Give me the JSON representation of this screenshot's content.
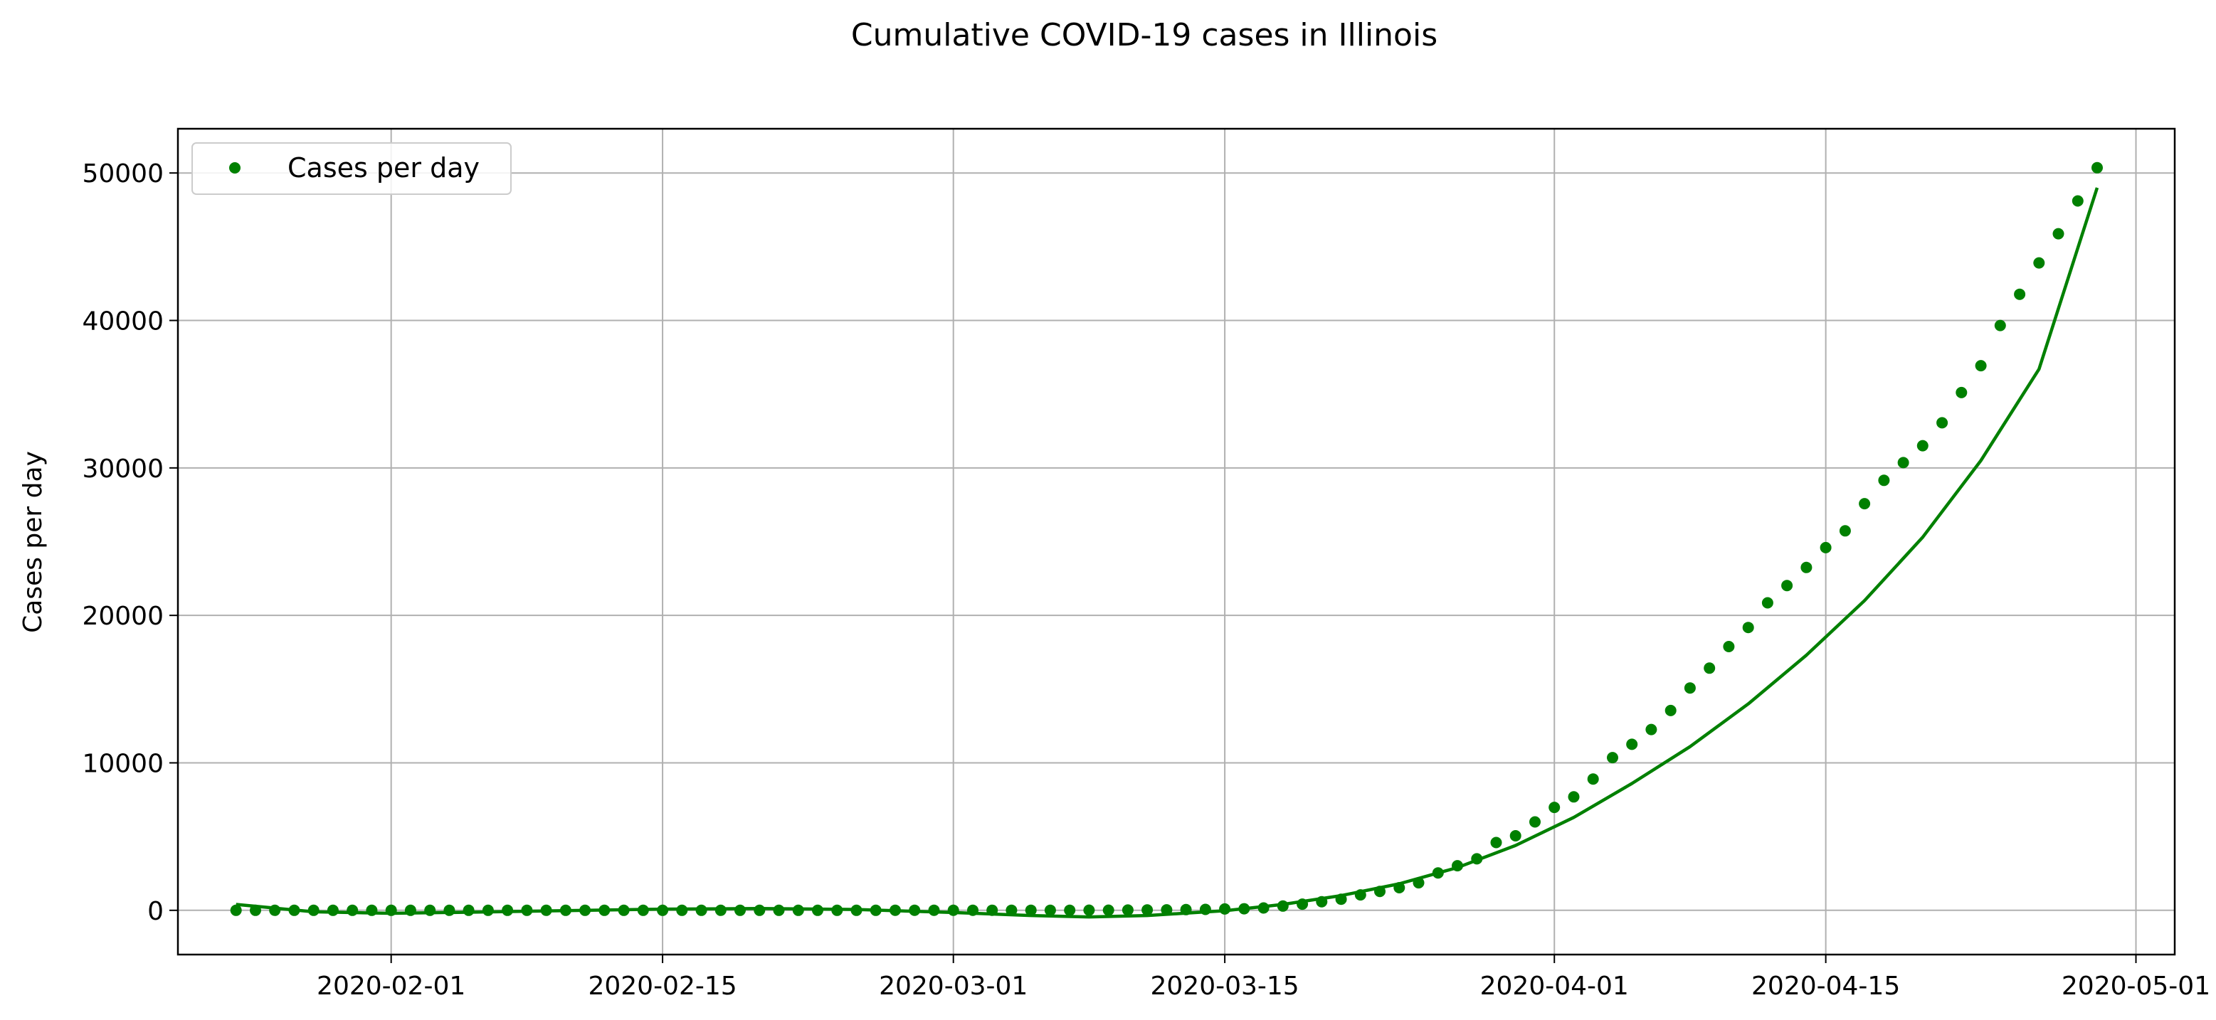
{
  "chart_data": {
    "type": "scatter",
    "title": "Cumulative COVID-19 cases in Illinois",
    "xlabel": "",
    "ylabel": "Cases per day",
    "x_start": "2020-01-24",
    "xlim": [
      "2020-01-21",
      "2020-05-03"
    ],
    "ylim": [
      -3000,
      53000
    ],
    "x_ticks": [
      "2020-02-01",
      "2020-02-15",
      "2020-03-01",
      "2020-03-15",
      "2020-04-01",
      "2020-04-15",
      "2020-05-01"
    ],
    "y_ticks": [
      0,
      10000,
      20000,
      30000,
      40000,
      50000
    ],
    "grid": true,
    "legend_position": "top-left",
    "series": [
      {
        "name": "Cases per day",
        "type": "scatter",
        "color": "#008000",
        "x": [
          "2020-01-24",
          "2020-01-25",
          "2020-01-26",
          "2020-01-27",
          "2020-01-28",
          "2020-01-29",
          "2020-01-30",
          "2020-01-31",
          "2020-02-01",
          "2020-02-02",
          "2020-02-03",
          "2020-02-04",
          "2020-02-05",
          "2020-02-06",
          "2020-02-07",
          "2020-02-08",
          "2020-02-09",
          "2020-02-10",
          "2020-02-11",
          "2020-02-12",
          "2020-02-13",
          "2020-02-14",
          "2020-02-15",
          "2020-02-16",
          "2020-02-17",
          "2020-02-18",
          "2020-02-19",
          "2020-02-20",
          "2020-02-21",
          "2020-02-22",
          "2020-02-23",
          "2020-02-24",
          "2020-02-25",
          "2020-02-26",
          "2020-02-27",
          "2020-02-28",
          "2020-02-29",
          "2020-03-01",
          "2020-03-02",
          "2020-03-03",
          "2020-03-04",
          "2020-03-05",
          "2020-03-06",
          "2020-03-07",
          "2020-03-08",
          "2020-03-09",
          "2020-03-10",
          "2020-03-11",
          "2020-03-12",
          "2020-03-13",
          "2020-03-14",
          "2020-03-15",
          "2020-03-16",
          "2020-03-17",
          "2020-03-18",
          "2020-03-19",
          "2020-03-20",
          "2020-03-21",
          "2020-03-22",
          "2020-03-23",
          "2020-03-24",
          "2020-03-25",
          "2020-03-26",
          "2020-03-27",
          "2020-03-28",
          "2020-03-29",
          "2020-03-30",
          "2020-03-31",
          "2020-04-01",
          "2020-04-02",
          "2020-04-03",
          "2020-04-04",
          "2020-04-05",
          "2020-04-06",
          "2020-04-07",
          "2020-04-08",
          "2020-04-09",
          "2020-04-10",
          "2020-04-11",
          "2020-04-12",
          "2020-04-13",
          "2020-04-14",
          "2020-04-15",
          "2020-04-16",
          "2020-04-17",
          "2020-04-18",
          "2020-04-19",
          "2020-04-20",
          "2020-04-21",
          "2020-04-22",
          "2020-04-23",
          "2020-04-24",
          "2020-04-25",
          "2020-04-26",
          "2020-04-27",
          "2020-04-28",
          "2020-04-29"
        ],
        "values": [
          1,
          1,
          1,
          2,
          2,
          2,
          2,
          2,
          2,
          2,
          2,
          2,
          2,
          2,
          2,
          2,
          2,
          2,
          2,
          2,
          2,
          2,
          2,
          2,
          2,
          2,
          2,
          2,
          2,
          2,
          2,
          2,
          2,
          2,
          3,
          3,
          3,
          3,
          4,
          4,
          4,
          6,
          7,
          7,
          11,
          12,
          19,
          25,
          32,
          46,
          64,
          93,
          105,
          160,
          288,
          422,
          585,
          753,
          1049,
          1285,
          1535,
          1865,
          2538,
          3026,
          3491,
          4596,
          5057,
          5994,
          6980,
          7695,
          8904,
          10357,
          11256,
          12262,
          13549,
          15078,
          16422,
          17887,
          19180,
          20852,
          22025,
          23247,
          24593,
          25733,
          27575,
          29160,
          30357,
          31508,
          33059,
          35108,
          36934,
          39658,
          41777,
          43903,
          45883,
          48102,
          50355
        ]
      },
      {
        "name": "",
        "type": "line",
        "color": "#008000",
        "x": [
          "2020-01-24",
          "2020-01-28",
          "2020-02-01",
          "2020-02-05",
          "2020-02-10",
          "2020-02-15",
          "2020-02-20",
          "2020-02-25",
          "2020-03-01",
          "2020-03-05",
          "2020-03-08",
          "2020-03-11",
          "2020-03-15",
          "2020-03-18",
          "2020-03-21",
          "2020-03-24",
          "2020-03-27",
          "2020-03-30",
          "2020-04-02",
          "2020-04-05",
          "2020-04-08",
          "2020-04-11",
          "2020-04-14",
          "2020-04-17",
          "2020-04-20",
          "2020-04-23",
          "2020-04-26",
          "2020-04-29"
        ],
        "values": [
          400,
          -100,
          -200,
          -130,
          -20,
          80,
          120,
          60,
          -150,
          -350,
          -450,
          -350,
          -30,
          400,
          1000,
          1800,
          2900,
          4400,
          6300,
          8600,
          11100,
          14000,
          17300,
          21000,
          25300,
          30500,
          36700,
          49000
        ]
      }
    ]
  }
}
